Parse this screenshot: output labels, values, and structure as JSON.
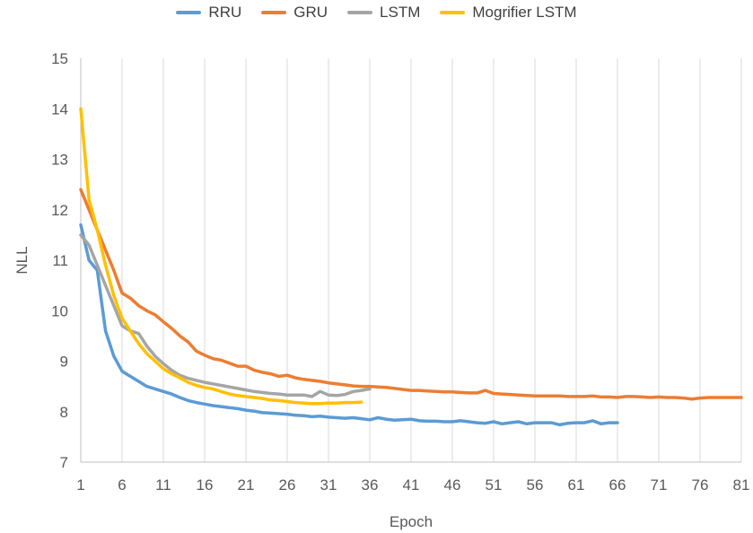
{
  "chart_data": {
    "type": "line",
    "xlabel": "Epoch",
    "ylabel": "NLL",
    "xlim": [
      1,
      81
    ],
    "ylim": [
      7,
      15
    ],
    "xticks": [
      1,
      6,
      11,
      16,
      21,
      26,
      31,
      36,
      41,
      46,
      51,
      56,
      61,
      66,
      71,
      76,
      81
    ],
    "yticks": [
      7,
      8,
      9,
      10,
      11,
      12,
      13,
      14,
      15
    ],
    "grid": "vertical",
    "legend_position": "top",
    "series": [
      {
        "name": "RRU",
        "color": "#5B9BD5",
        "x": [
          1,
          2,
          3,
          4,
          5,
          6,
          7,
          8,
          9,
          10,
          11,
          12,
          13,
          14,
          15,
          16,
          17,
          18,
          19,
          20,
          21,
          22,
          23,
          24,
          25,
          26,
          27,
          28,
          29,
          30,
          31,
          32,
          33,
          34,
          35,
          36,
          37,
          38,
          39,
          40,
          41,
          42,
          43,
          44,
          45,
          46,
          47,
          48,
          49,
          50,
          51,
          52,
          53,
          54,
          55,
          56,
          57,
          58,
          59,
          60,
          61,
          62,
          63,
          64,
          65,
          66
        ],
        "values": [
          11.7,
          11.0,
          10.8,
          9.6,
          9.1,
          8.8,
          8.7,
          8.6,
          8.5,
          8.45,
          8.4,
          8.35,
          8.28,
          8.22,
          8.18,
          8.15,
          8.12,
          8.1,
          8.08,
          8.06,
          8.03,
          8.01,
          7.98,
          7.97,
          7.96,
          7.95,
          7.93,
          7.92,
          7.9,
          7.91,
          7.89,
          7.88,
          7.87,
          7.88,
          7.86,
          7.84,
          7.88,
          7.85,
          7.83,
          7.84,
          7.85,
          7.82,
          7.81,
          7.81,
          7.8,
          7.8,
          7.82,
          7.8,
          7.78,
          7.77,
          7.8,
          7.76,
          7.78,
          7.8,
          7.76,
          7.78,
          7.78,
          7.78,
          7.74,
          7.77,
          7.78,
          7.78,
          7.82,
          7.76,
          7.78,
          7.78
        ]
      },
      {
        "name": "GRU",
        "color": "#ED7D31",
        "x": [
          1,
          2,
          3,
          4,
          5,
          6,
          7,
          8,
          9,
          10,
          11,
          12,
          13,
          14,
          15,
          16,
          17,
          18,
          19,
          20,
          21,
          22,
          23,
          24,
          25,
          26,
          27,
          28,
          29,
          30,
          31,
          32,
          33,
          34,
          35,
          36,
          37,
          38,
          39,
          40,
          41,
          42,
          43,
          44,
          45,
          46,
          47,
          48,
          49,
          50,
          51,
          52,
          53,
          54,
          55,
          56,
          57,
          58,
          59,
          60,
          61,
          62,
          63,
          64,
          65,
          66,
          67,
          68,
          69,
          70,
          71,
          72,
          73,
          74,
          75,
          76,
          77,
          78,
          79,
          80,
          81
        ],
        "values": [
          12.4,
          12.0,
          11.6,
          11.2,
          10.8,
          10.35,
          10.25,
          10.1,
          10.0,
          9.92,
          9.78,
          9.65,
          9.5,
          9.38,
          9.2,
          9.12,
          9.05,
          9.02,
          8.96,
          8.9,
          8.9,
          8.82,
          8.78,
          8.75,
          8.7,
          8.72,
          8.67,
          8.64,
          8.62,
          8.6,
          8.57,
          8.55,
          8.53,
          8.51,
          8.5,
          8.5,
          8.49,
          8.48,
          8.46,
          8.44,
          8.42,
          8.42,
          8.41,
          8.4,
          8.39,
          8.39,
          8.38,
          8.37,
          8.37,
          8.42,
          8.36,
          8.35,
          8.34,
          8.33,
          8.32,
          8.31,
          8.31,
          8.31,
          8.31,
          8.3,
          8.3,
          8.3,
          8.31,
          8.29,
          8.29,
          8.28,
          8.3,
          8.3,
          8.29,
          8.28,
          8.29,
          8.28,
          8.28,
          8.27,
          8.25,
          8.27,
          8.28,
          8.28,
          8.28,
          8.28,
          8.28
        ]
      },
      {
        "name": "LSTM",
        "color": "#A5A5A5",
        "x": [
          1,
          2,
          3,
          4,
          5,
          6,
          7,
          8,
          9,
          10,
          11,
          12,
          13,
          14,
          15,
          16,
          17,
          18,
          19,
          20,
          21,
          22,
          23,
          24,
          25,
          26,
          27,
          28,
          29,
          30,
          31,
          32,
          33,
          34,
          35,
          36
        ],
        "values": [
          11.5,
          11.3,
          10.9,
          10.5,
          10.1,
          9.7,
          9.6,
          9.55,
          9.3,
          9.1,
          8.95,
          8.82,
          8.72,
          8.66,
          8.62,
          8.58,
          8.55,
          8.52,
          8.49,
          8.46,
          8.43,
          8.4,
          8.38,
          8.36,
          8.35,
          8.33,
          8.33,
          8.33,
          8.3,
          8.4,
          8.33,
          8.32,
          8.34,
          8.4,
          8.42,
          8.45
        ]
      },
      {
        "name": "Mogrifier LSTM",
        "color": "#FFC000",
        "x": [
          1,
          2,
          3,
          4,
          5,
          6,
          7,
          8,
          9,
          10,
          11,
          12,
          13,
          14,
          15,
          16,
          17,
          18,
          19,
          20,
          21,
          22,
          23,
          24,
          25,
          26,
          27,
          28,
          29,
          30,
          31,
          32,
          33,
          34,
          35
        ],
        "values": [
          14.0,
          12.2,
          11.6,
          10.9,
          10.3,
          9.85,
          9.6,
          9.35,
          9.15,
          9.0,
          8.85,
          8.75,
          8.67,
          8.58,
          8.52,
          8.48,
          8.45,
          8.4,
          8.35,
          8.32,
          8.3,
          8.28,
          8.26,
          8.23,
          8.22,
          8.2,
          8.18,
          8.17,
          8.16,
          8.16,
          8.17,
          8.17,
          8.18,
          8.18,
          8.19
        ]
      }
    ]
  }
}
